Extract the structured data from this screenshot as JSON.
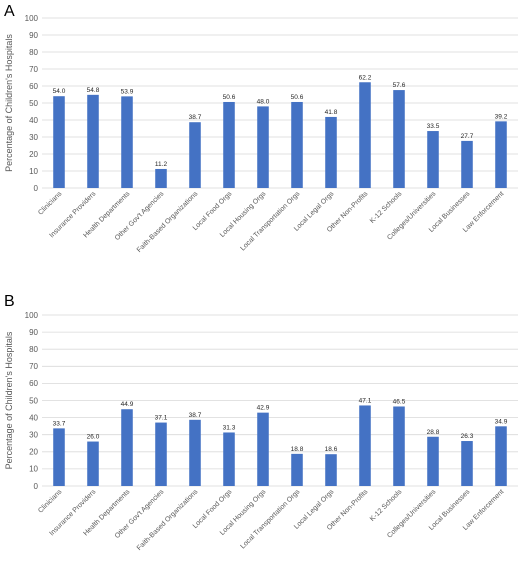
{
  "chart_data": [
    {
      "type": "bar",
      "panel_label": "A",
      "ylabel": "Percentage of Children's Hospitals",
      "ylim": [
        0,
        100
      ],
      "yticks": [
        "0",
        "10",
        "20",
        "30",
        "40",
        "50",
        "60",
        "70",
        "80",
        "90",
        "100"
      ],
      "grid": true,
      "categories": [
        "Clinicians",
        "Insurance Providers",
        "Health Departments",
        "Other Gov't Agencies",
        "Faith-Based Organizations",
        "Local Food Orgs",
        "Local Housing Orgs",
        "Local Transportation Orgs",
        "Local Legal Orgs",
        "Other Non-Profits",
        "K-12 Schools",
        "Colleges/Universities",
        "Local Businesses",
        "Law Enforcement"
      ],
      "values": [
        54.0,
        54.8,
        53.9,
        11.2,
        38.7,
        50.6,
        48.0,
        50.6,
        41.8,
        62.2,
        57.6,
        33.5,
        27.7,
        39.2
      ],
      "value_labels": [
        "54.0",
        "54.8",
        "53.9",
        "11.2",
        "38.7",
        "50.6",
        "48.0",
        "50.6",
        "41.8",
        "62.2",
        "57.6",
        "33.5",
        "27.7",
        "39.2"
      ],
      "color": "#4472c4"
    },
    {
      "type": "bar",
      "panel_label": "B",
      "ylabel": "Percentage of Children's Hospitals",
      "ylim": [
        0,
        100
      ],
      "yticks": [
        "0",
        "10",
        "20",
        "30",
        "40",
        "50",
        "60",
        "70",
        "80",
        "90",
        "100"
      ],
      "grid": true,
      "categories": [
        "Clinicians",
        "Insurance Providers",
        "Health Departments",
        "Other Gov't Agencies",
        "Faith-Based Organizations",
        "Local Food Orgs",
        "Local Housing Orgs",
        "Local Transportation Orgs",
        "Local Legal Orgs",
        "Other Non-Profits",
        "K-12 Schools",
        "Colleges/Universities",
        "Local Businesses",
        "Law Enforcement"
      ],
      "values": [
        33.7,
        26.0,
        44.9,
        37.1,
        38.7,
        31.3,
        42.9,
        18.8,
        18.6,
        47.1,
        46.5,
        28.8,
        26.3,
        34.9
      ],
      "value_labels": [
        "33.7",
        "26.0",
        "44.9",
        "37.1",
        "38.7",
        "31.3",
        "42.9",
        "18.8",
        "18.6",
        "47.1",
        "46.5",
        "28.8",
        "26.3",
        "34.9"
      ],
      "color": "#4472c4"
    }
  ]
}
